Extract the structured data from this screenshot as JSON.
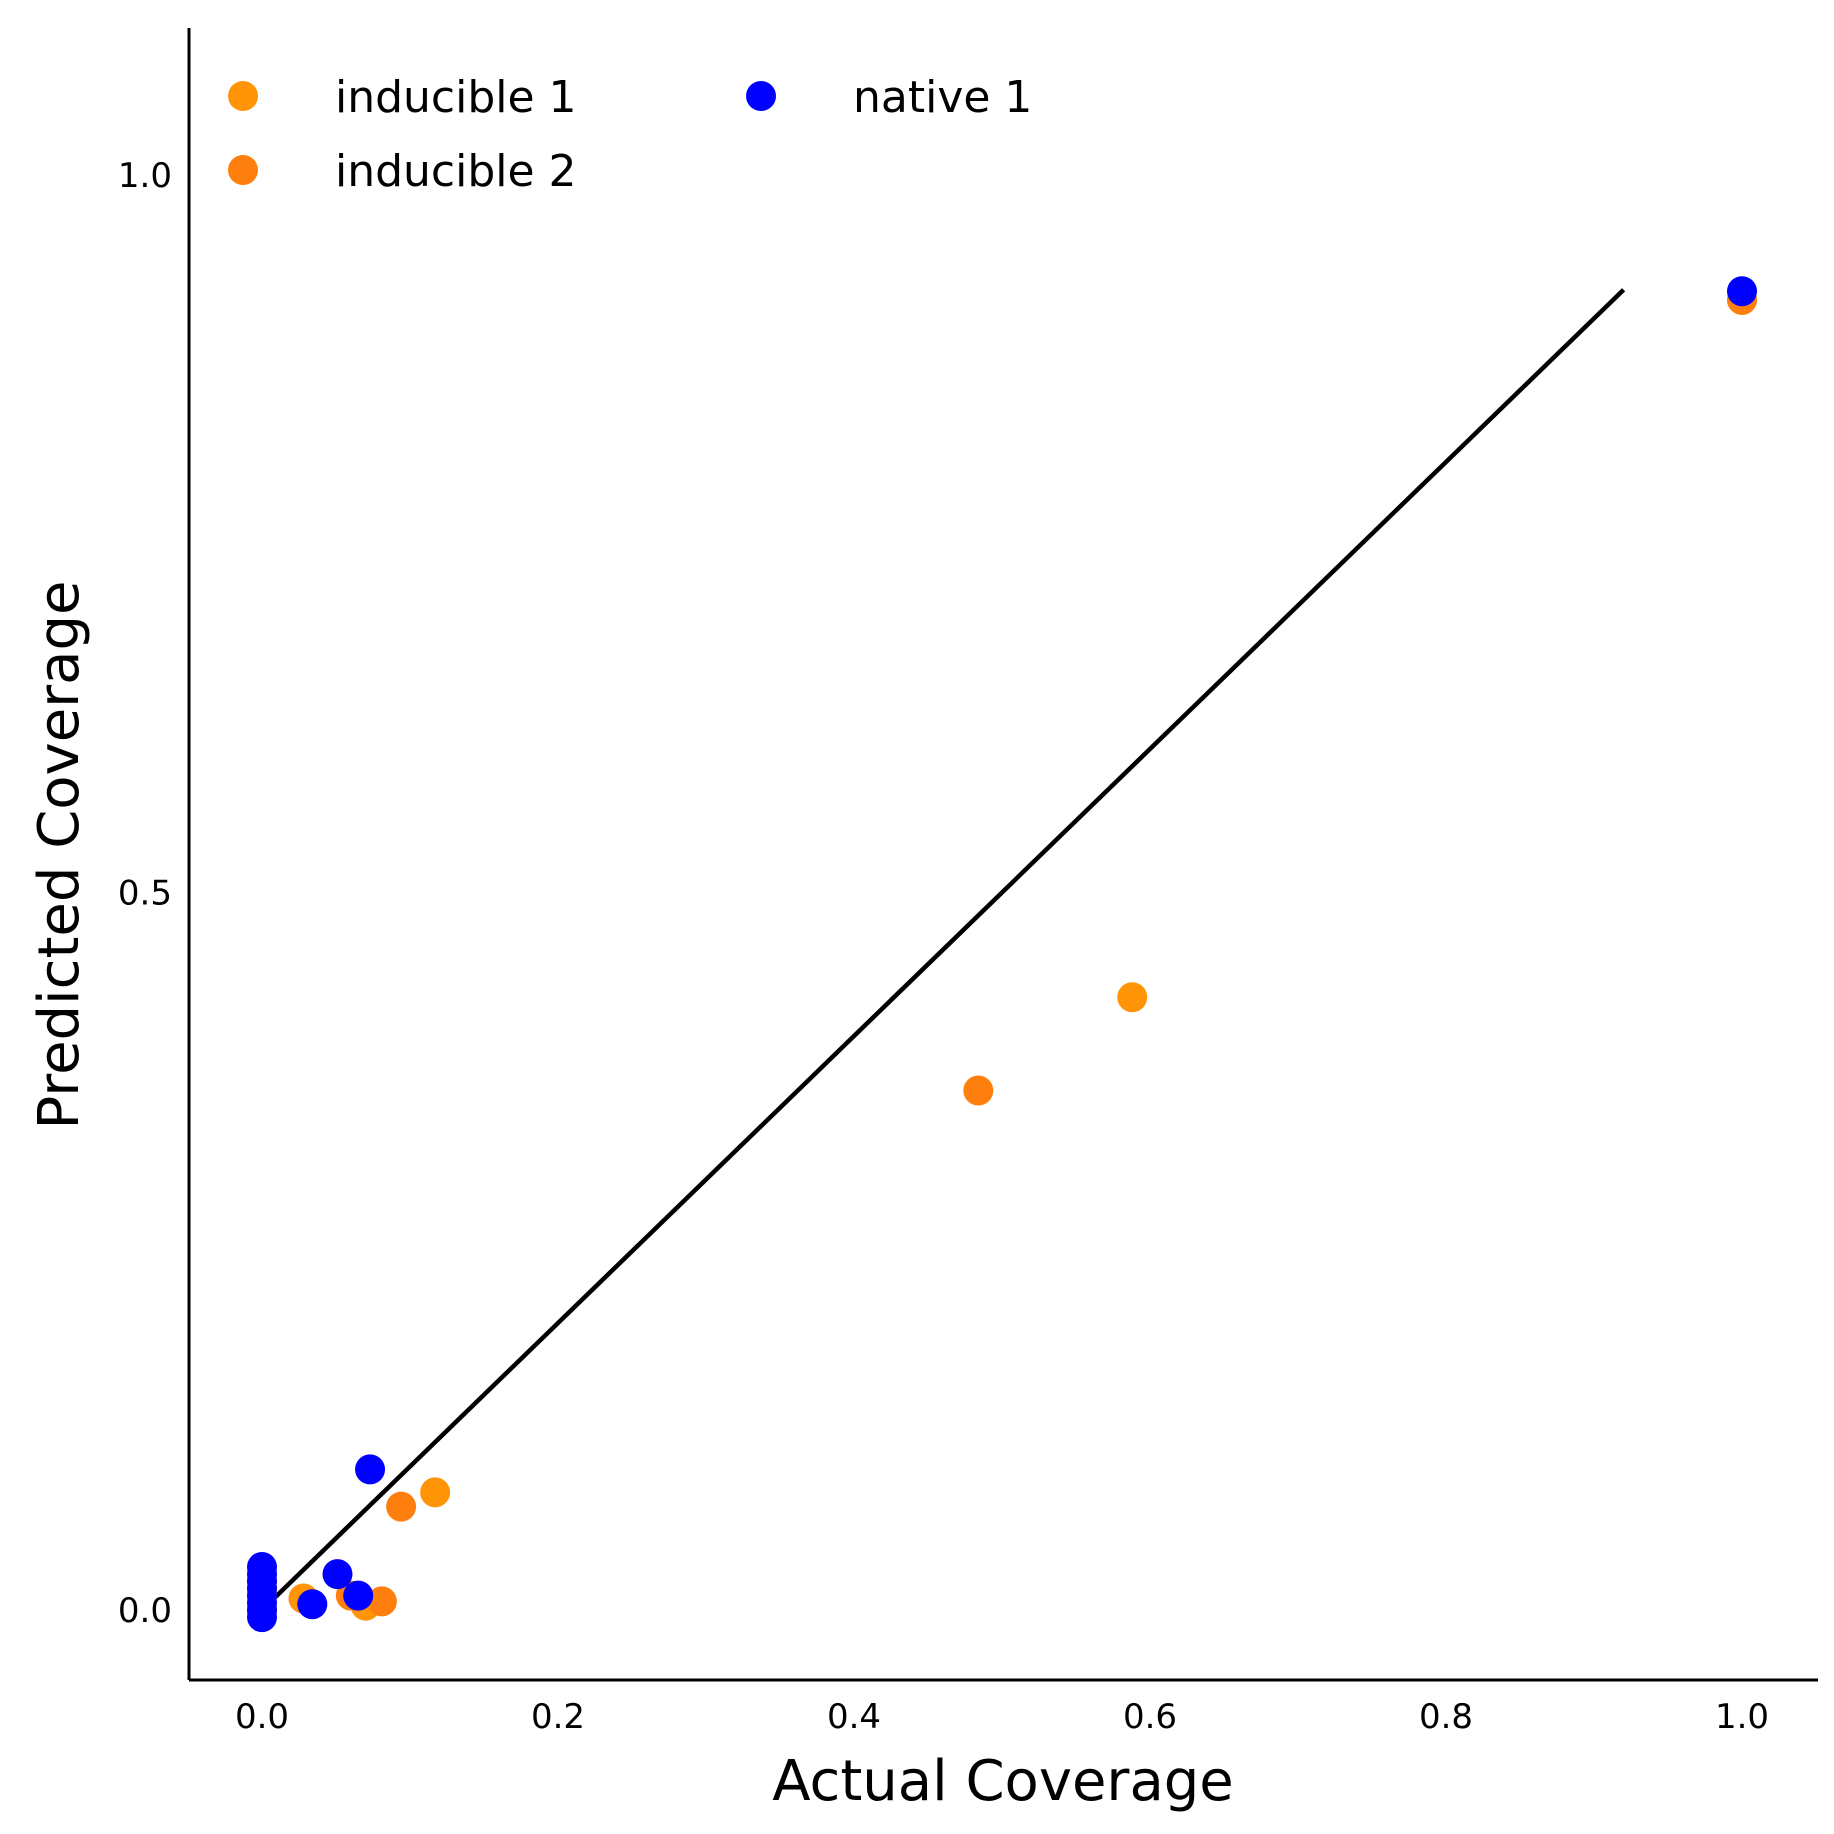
{
  "chart_data": {
    "type": "scatter",
    "title": "",
    "xlabel": "Actual Coverage",
    "ylabel": "Predicted Coverage",
    "xlim": [
      -0.05,
      1.05
    ],
    "ylim": [
      -0.05,
      1.1
    ],
    "xticks": [
      {
        "value": 0.0,
        "label": "0.0"
      },
      {
        "value": 0.2,
        "label": "0.2"
      },
      {
        "value": 0.4,
        "label": "0.4"
      },
      {
        "value": 0.6,
        "label": "0.6"
      },
      {
        "value": 0.8,
        "label": "0.8"
      },
      {
        "value": 1.0,
        "label": "1.0"
      }
    ],
    "yticks": [
      {
        "value": 0.0,
        "label": "0.0"
      },
      {
        "value": 0.5,
        "label": "0.5"
      },
      {
        "value": 1.0,
        "label": "1.0"
      }
    ],
    "grid": false,
    "legend": {
      "placement": "top-left",
      "columns": 2
    },
    "reference_line": {
      "x": [
        0.0,
        0.92
      ],
      "y": [
        0.0,
        0.92
      ],
      "color": "#000000"
    },
    "series": [
      {
        "name": "inducible 1",
        "color": "#ff9406",
        "points": [
          {
            "x": 0.0,
            "y": 0.0
          },
          {
            "x": 0.0,
            "y": 0.01
          },
          {
            "x": 0.0,
            "y": 0.02
          },
          {
            "x": 0.028,
            "y": 0.008
          },
          {
            "x": 0.07,
            "y": 0.003
          },
          {
            "x": 0.117,
            "y": 0.082
          },
          {
            "x": 0.588,
            "y": 0.427
          },
          {
            "x": 1.0,
            "y": 0.913
          }
        ]
      },
      {
        "name": "inducible 2",
        "color": "#ff7f0e",
        "points": [
          {
            "x": 0.0,
            "y": 0.0
          },
          {
            "x": 0.0,
            "y": 0.015
          },
          {
            "x": 0.06,
            "y": 0.01
          },
          {
            "x": 0.081,
            "y": 0.006
          },
          {
            "x": 0.094,
            "y": 0.072
          },
          {
            "x": 0.484,
            "y": 0.362
          },
          {
            "x": 1.0,
            "y": 0.913
          }
        ]
      },
      {
        "name": "native 1",
        "color": "#0000ff",
        "points": [
          {
            "x": 0.0,
            "y": -0.005
          },
          {
            "x": 0.0,
            "y": 0.0
          },
          {
            "x": 0.0,
            "y": 0.005
          },
          {
            "x": 0.0,
            "y": 0.01
          },
          {
            "x": 0.0,
            "y": 0.015
          },
          {
            "x": 0.0,
            "y": 0.02
          },
          {
            "x": 0.0,
            "y": 0.025
          },
          {
            "x": 0.0,
            "y": 0.03
          },
          {
            "x": 0.034,
            "y": 0.004
          },
          {
            "x": 0.051,
            "y": 0.025
          },
          {
            "x": 0.065,
            "y": 0.01
          },
          {
            "x": 0.073,
            "y": 0.098
          },
          {
            "x": 1.0,
            "y": 0.919
          }
        ]
      }
    ]
  }
}
